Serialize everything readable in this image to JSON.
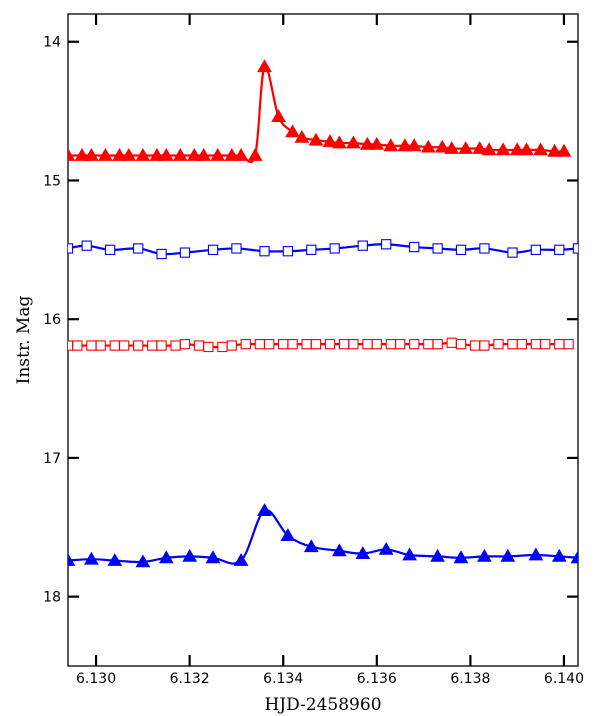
{
  "chart_data": {
    "type": "line",
    "title": "",
    "xlabel": "HJD-2458960",
    "ylabel": "Instr. Mag",
    "xlim": [
      6.1294,
      6.1403
    ],
    "ylim": [
      18.5,
      13.8
    ],
    "y_inverted": true,
    "grid": false,
    "legend": "none",
    "x_ticks": [
      6.13,
      6.132,
      6.134,
      6.136,
      6.138,
      6.14
    ],
    "x_tick_labels": [
      "6.130",
      "6.132",
      "6.134",
      "6.136",
      "6.138",
      "6.140"
    ],
    "y_ticks": [
      14,
      15,
      16,
      17,
      18
    ],
    "y_tick_labels": [
      "14",
      "15",
      "16",
      "17",
      "18"
    ],
    "series": [
      {
        "color": "#ff0000",
        "marker": "filled-triangle",
        "points": [
          [
            6.1294,
            14.82
          ],
          [
            6.1297,
            14.82
          ],
          [
            6.1299,
            14.82
          ],
          [
            6.1302,
            14.82
          ],
          [
            6.1305,
            14.82
          ],
          [
            6.1307,
            14.82
          ],
          [
            6.131,
            14.82
          ],
          [
            6.1313,
            14.82
          ],
          [
            6.1315,
            14.82
          ],
          [
            6.1318,
            14.82
          ],
          [
            6.1321,
            14.82
          ],
          [
            6.1323,
            14.82
          ],
          [
            6.1326,
            14.82
          ],
          [
            6.1329,
            14.82
          ],
          [
            6.1331,
            14.82
          ],
          [
            6.1334,
            14.82
          ],
          [
            6.1336,
            14.18
          ],
          [
            6.1339,
            14.54
          ],
          [
            6.1342,
            14.65
          ],
          [
            6.1344,
            14.69
          ],
          [
            6.1347,
            14.71
          ],
          [
            6.135,
            14.72
          ],
          [
            6.1352,
            14.73
          ],
          [
            6.1355,
            14.73
          ],
          [
            6.1358,
            14.74
          ],
          [
            6.136,
            14.74
          ],
          [
            6.1363,
            14.75
          ],
          [
            6.1366,
            14.75
          ],
          [
            6.1368,
            14.75
          ],
          [
            6.1371,
            14.76
          ],
          [
            6.1374,
            14.76
          ],
          [
            6.1376,
            14.77
          ],
          [
            6.1379,
            14.77
          ],
          [
            6.1382,
            14.77
          ],
          [
            6.1384,
            14.78
          ],
          [
            6.1387,
            14.78
          ],
          [
            6.139,
            14.78
          ],
          [
            6.1392,
            14.78
          ],
          [
            6.1395,
            14.78
          ],
          [
            6.1398,
            14.79
          ],
          [
            6.14,
            14.79
          ]
        ]
      },
      {
        "color": "#0000ff",
        "marker": "open-square",
        "points": [
          [
            6.1294,
            15.49
          ],
          [
            6.1298,
            15.47
          ],
          [
            6.1303,
            15.5
          ],
          [
            6.1309,
            15.49
          ],
          [
            6.1314,
            15.53
          ],
          [
            6.1319,
            15.52
          ],
          [
            6.1325,
            15.5
          ],
          [
            6.133,
            15.49
          ],
          [
            6.1336,
            15.51
          ],
          [
            6.1341,
            15.51
          ],
          [
            6.1346,
            15.5
          ],
          [
            6.1351,
            15.49
          ],
          [
            6.1357,
            15.47
          ],
          [
            6.1362,
            15.46
          ],
          [
            6.1368,
            15.48
          ],
          [
            6.1373,
            15.49
          ],
          [
            6.1378,
            15.5
          ],
          [
            6.1383,
            15.49
          ],
          [
            6.1389,
            15.52
          ],
          [
            6.1394,
            15.5
          ],
          [
            6.1399,
            15.5
          ],
          [
            6.1403,
            15.49
          ]
        ]
      },
      {
        "color": "#ff0000",
        "marker": "open-square",
        "points": [
          [
            6.1294,
            16.19
          ],
          [
            6.1296,
            16.19
          ],
          [
            6.1299,
            16.19
          ],
          [
            6.1301,
            16.19
          ],
          [
            6.1304,
            16.19
          ],
          [
            6.1306,
            16.19
          ],
          [
            6.1309,
            16.19
          ],
          [
            6.1312,
            16.19
          ],
          [
            6.1314,
            16.19
          ],
          [
            6.1317,
            16.19
          ],
          [
            6.1319,
            16.18
          ],
          [
            6.1322,
            16.19
          ],
          [
            6.1324,
            16.2
          ],
          [
            6.1327,
            16.2
          ],
          [
            6.1329,
            16.19
          ],
          [
            6.1332,
            16.18
          ],
          [
            6.1335,
            16.18
          ],
          [
            6.1337,
            16.18
          ],
          [
            6.134,
            16.18
          ],
          [
            6.1342,
            16.18
          ],
          [
            6.1345,
            16.18
          ],
          [
            6.1347,
            16.18
          ],
          [
            6.135,
            16.18
          ],
          [
            6.1353,
            16.18
          ],
          [
            6.1355,
            16.18
          ],
          [
            6.1358,
            16.18
          ],
          [
            6.136,
            16.18
          ],
          [
            6.1363,
            16.18
          ],
          [
            6.1365,
            16.18
          ],
          [
            6.1368,
            16.18
          ],
          [
            6.1371,
            16.18
          ],
          [
            6.1373,
            16.18
          ],
          [
            6.1376,
            16.17
          ],
          [
            6.1378,
            16.18
          ],
          [
            6.1381,
            16.19
          ],
          [
            6.1383,
            16.19
          ],
          [
            6.1386,
            16.18
          ],
          [
            6.1389,
            16.18
          ],
          [
            6.1391,
            16.18
          ],
          [
            6.1394,
            16.18
          ],
          [
            6.1396,
            16.18
          ],
          [
            6.1399,
            16.18
          ],
          [
            6.1401,
            16.18
          ]
        ]
      },
      {
        "color": "#0000ff",
        "marker": "filled-triangle",
        "points": [
          [
            6.1294,
            17.74
          ],
          [
            6.1299,
            17.73
          ],
          [
            6.1304,
            17.74
          ],
          [
            6.131,
            17.75
          ],
          [
            6.1315,
            17.72
          ],
          [
            6.132,
            17.71
          ],
          [
            6.1325,
            17.72
          ],
          [
            6.1331,
            17.74
          ],
          [
            6.1336,
            17.38
          ],
          [
            6.1341,
            17.56
          ],
          [
            6.1346,
            17.64
          ],
          [
            6.1352,
            17.67
          ],
          [
            6.1357,
            17.69
          ],
          [
            6.1362,
            17.66
          ],
          [
            6.1367,
            17.7
          ],
          [
            6.1373,
            17.71
          ],
          [
            6.1378,
            17.72
          ],
          [
            6.1383,
            17.71
          ],
          [
            6.1388,
            17.71
          ],
          [
            6.1394,
            17.7
          ],
          [
            6.1399,
            17.71
          ],
          [
            6.1403,
            17.72
          ]
        ]
      }
    ]
  }
}
